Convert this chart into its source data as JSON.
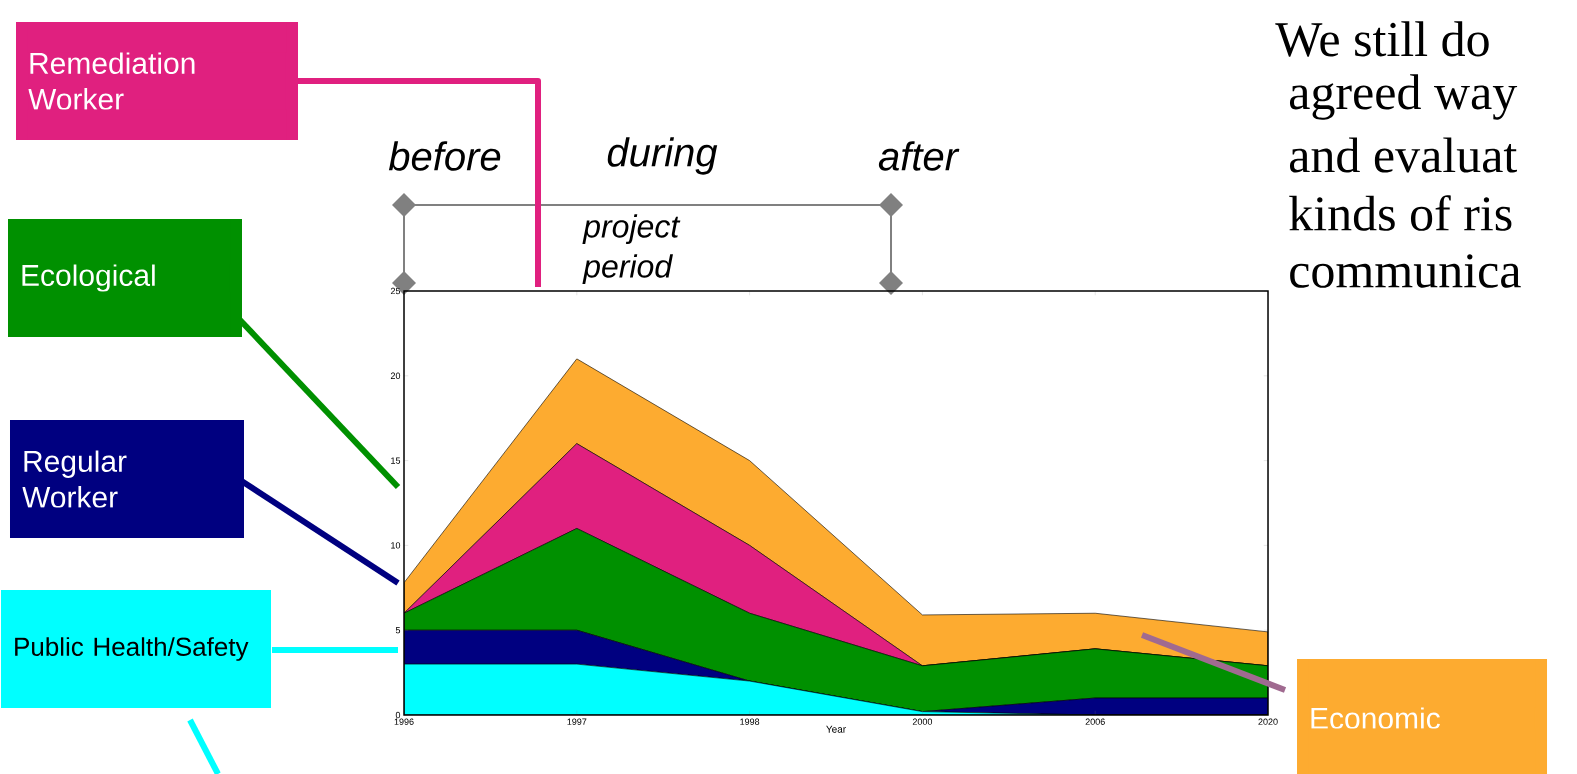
{
  "chart_data": {
    "type": "area",
    "stacked": true,
    "xlabel": "Year",
    "categories": [
      "1996",
      "1997",
      "1998",
      "2000",
      "2006",
      "2020"
    ],
    "ylim": [
      0,
      25
    ],
    "yticks": [
      0,
      5,
      10,
      15,
      20,
      25
    ],
    "series": [
      {
        "name": "Public Health/Safety",
        "color": "#00ffff",
        "values": [
          3,
          3,
          2,
          0.2,
          0,
          0
        ]
      },
      {
        "name": "Regular Worker",
        "color": "#000080",
        "values": [
          2,
          2,
          0,
          0,
          1,
          1
        ]
      },
      {
        "name": "Ecological",
        "color": "#009000",
        "values": [
          1,
          6,
          4,
          2.7,
          2.9,
          1.9
        ]
      },
      {
        "name": "Remediation Worker",
        "color": "#e0207f",
        "values": [
          0,
          5,
          4,
          0,
          0,
          0
        ]
      },
      {
        "name": "Economic",
        "color": "#fdab30",
        "values": [
          1.8,
          5,
          5,
          3,
          2.1,
          2
        ]
      }
    ],
    "legend": "left",
    "annotations": [
      "before",
      "during",
      "after",
      "project period",
      "We still do",
      "agreed way",
      "and evaluat",
      "kinds of ris",
      "communica"
    ]
  }
}
